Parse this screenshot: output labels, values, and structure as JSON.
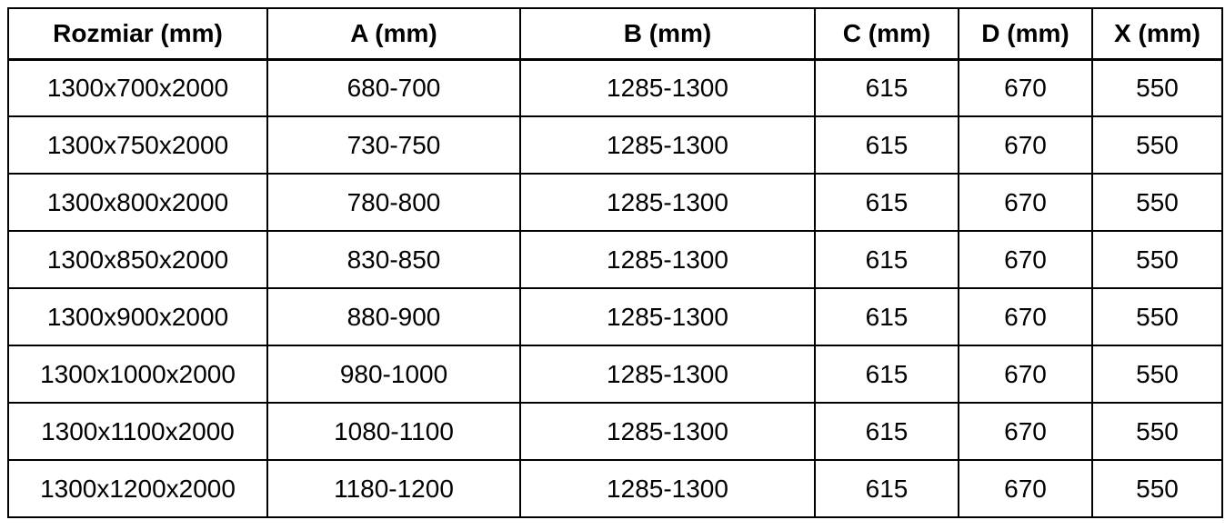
{
  "colors": {
    "background": "#ffffff",
    "border": "#000000",
    "text": "#000000"
  },
  "chart_data": {
    "type": "table",
    "columns": [
      "Rozmiar (mm)",
      "A (mm)",
      "B (mm)",
      "C (mm)",
      "D (mm)",
      "X (mm)"
    ],
    "rows": [
      [
        "1300x700x2000",
        "680-700",
        "1285-1300",
        "615",
        "670",
        "550"
      ],
      [
        "1300x750x2000",
        "730-750",
        "1285-1300",
        "615",
        "670",
        "550"
      ],
      [
        "1300x800x2000",
        "780-800",
        "1285-1300",
        "615",
        "670",
        "550"
      ],
      [
        "1300x850x2000",
        "830-850",
        "1285-1300",
        "615",
        "670",
        "550"
      ],
      [
        "1300x900x2000",
        "880-900",
        "1285-1300",
        "615",
        "670",
        "550"
      ],
      [
        "1300x1000x2000",
        "980-1000",
        "1285-1300",
        "615",
        "670",
        "550"
      ],
      [
        "1300x1100x2000",
        "1080-1100",
        "1285-1300",
        "615",
        "670",
        "550"
      ],
      [
        "1300x1200x2000",
        "1180-1200",
        "1285-1300",
        "615",
        "670",
        "550"
      ]
    ]
  }
}
